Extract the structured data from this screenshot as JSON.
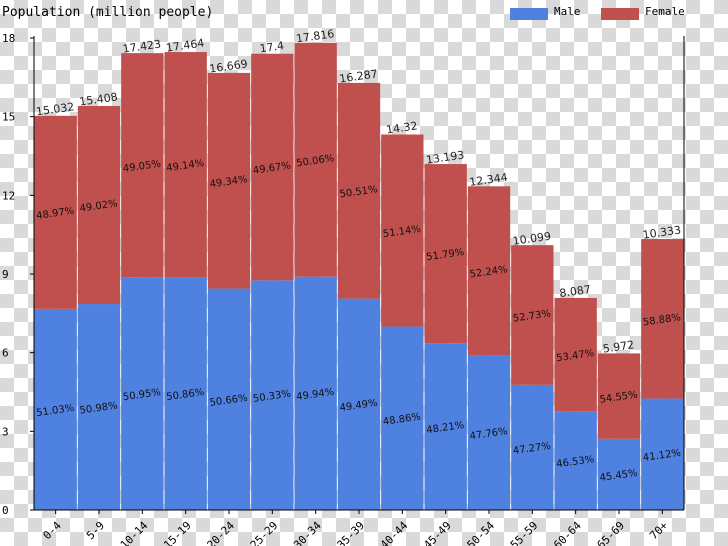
{
  "chart_data": {
    "type": "bar",
    "stacked": true,
    "title": "Population (million people)",
    "categories": [
      "0-4",
      "5-9",
      "10-14",
      "15-19",
      "20-24",
      "25-29",
      "30-34",
      "35-39",
      "40-44",
      "45-49",
      "50-54",
      "55-59",
      "60-64",
      "65-69",
      "70+"
    ],
    "totals": [
      15.032,
      15.408,
      17.423,
      17.464,
      16.669,
      17.4,
      17.816,
      16.287,
      14.32,
      13.193,
      12.344,
      10.099,
      8.087,
      5.972,
      10.333
    ],
    "total_labels": [
      "15.032",
      "15.408",
      "17.423",
      "17.464",
      "16.669",
      "17.4",
      "17.816",
      "16.287",
      "14.32",
      "13.193",
      "12.344",
      "10.099",
      "8.087",
      "5.972",
      "10.333"
    ],
    "series": [
      {
        "name": "Male",
        "color": "#4f81e0",
        "percent": [
          51.03,
          50.98,
          50.95,
          50.86,
          50.66,
          50.33,
          49.94,
          49.49,
          48.86,
          48.21,
          47.76,
          47.27,
          46.53,
          45.45,
          41.12
        ],
        "labels": [
          "51.03%",
          "50.98%",
          "50.95%",
          "50.86%",
          "50.66%",
          "50.33%",
          "49.94%",
          "49.49%",
          "48.86%",
          "48.21%",
          "47.76%",
          "47.27%",
          "46.53%",
          "45.45%",
          "41.12%"
        ]
      },
      {
        "name": "Female",
        "color": "#c0504d",
        "percent": [
          48.97,
          49.02,
          49.05,
          49.14,
          49.34,
          49.67,
          50.06,
          50.51,
          51.14,
          51.79,
          52.24,
          52.73,
          53.47,
          54.55,
          58.88
        ],
        "labels": [
          "48.97%",
          "49.02%",
          "49.05%",
          "49.14%",
          "49.34%",
          "49.67%",
          "50.06%",
          "50.51%",
          "51.14%",
          "51.79%",
          "52.24%",
          "52.73%",
          "53.47%",
          "54.55%",
          "58.88%"
        ]
      }
    ],
    "ylim": [
      0,
      18
    ],
    "yticks": [
      0,
      3,
      6,
      9,
      12,
      15,
      18
    ],
    "ytick_labels": [
      "0",
      "3",
      "6",
      "9",
      "12",
      "15",
      "18"
    ],
    "legend": {
      "position": "top-right"
    },
    "grid": false
  }
}
